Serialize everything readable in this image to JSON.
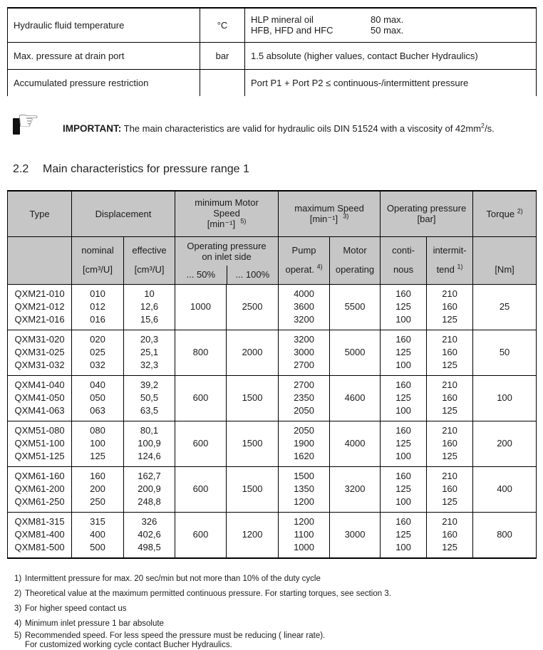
{
  "top_table": {
    "rows": [
      {
        "param": "Hydraulic fluid temperature",
        "unit": "°C",
        "entries": [
          {
            "label": "HLP mineral oil",
            "value": "80 max."
          },
          {
            "label": "HFB, HFD and HFC",
            "value": "50 max."
          }
        ]
      },
      {
        "param": "Max. pressure at drain port",
        "unit": "bar",
        "text": "1.5 absolute (higher values, contact Bucher Hydraulics)"
      },
      {
        "param": "Accumulated pressure restriction",
        "unit": "",
        "text": "Port P1 + Port P2 ≤   continuous-/intermittent pressure"
      }
    ]
  },
  "note": {
    "icon": "pointing-hand-icon",
    "label": "IMPORTANT:",
    "text": " The main characteristics are valid for hydraulic oils DIN 51524 with a viscosity of 42mm",
    "sup": "2",
    "tail": "/s."
  },
  "heading": {
    "number": "2.2",
    "title": "Main characteristics for pressure range 1"
  },
  "main_table": {
    "header": {
      "type": "Type",
      "displacement": "Displacement",
      "min_speed": {
        "l1": "minimum Motor",
        "l2": "Speed",
        "unit": "[min⁻¹]",
        "ref": "5)"
      },
      "max_speed": {
        "l1": "maximum Speed",
        "unit": "[min⁻¹]",
        "ref": "3)"
      },
      "op_pressure": {
        "l1": "Operating  pressure",
        "unit": "[bar]"
      },
      "torque": {
        "label": "Torque",
        "ref": "2)"
      },
      "sub": {
        "nominal": {
          "label": "nominal",
          "unit": "[cm³/U]"
        },
        "effective": {
          "label": "effective",
          "unit": "[cm³/U]"
        },
        "inlet": {
          "label": "Operating pressure on inlet side",
          "p50": "... 50%",
          "p100": "... 100%"
        },
        "pump": {
          "l1": "Pump",
          "l2": "operat.",
          "ref": "4)"
        },
        "motor": {
          "l1": "Motor",
          "l2": "operating"
        },
        "conti": {
          "l1": "conti-",
          "l2": "nous"
        },
        "intermit": {
          "l1": "intermit-",
          "l2": "tend",
          "ref": "1)"
        },
        "nm": "[Nm]"
      }
    },
    "groups": [
      {
        "types": [
          "QXM21-010",
          "QXM21-012",
          "QXM21-016"
        ],
        "nominal": [
          "010",
          "012",
          "016"
        ],
        "effective": [
          "10",
          "12,6",
          "15,6"
        ],
        "p50": "1000",
        "p100": "2500",
        "pump": [
          "4000",
          "3600",
          "3200"
        ],
        "motor": "5500",
        "conti": [
          "160",
          "125",
          "100"
        ],
        "intermit": [
          "210",
          "160",
          "125"
        ],
        "torque": "25"
      },
      {
        "types": [
          "QXM31-020",
          "QXM31-025",
          "QXM31-032"
        ],
        "nominal": [
          "020",
          "025",
          "032"
        ],
        "effective": [
          "20,3",
          "25,1",
          "32,3"
        ],
        "p50": "800",
        "p100": "2000",
        "pump": [
          "3200",
          "3000",
          "2700"
        ],
        "motor": "5000",
        "conti": [
          "160",
          "125",
          "100"
        ],
        "intermit": [
          "210",
          "160",
          "125"
        ],
        "torque": "50"
      },
      {
        "types": [
          "QXM41-040",
          "QXM41-050",
          "QXM41-063"
        ],
        "nominal": [
          "040",
          "050",
          "063"
        ],
        "effective": [
          "39,2",
          "50,5",
          "63,5"
        ],
        "p50": "600",
        "p100": "1500",
        "pump": [
          "2700",
          "2350",
          "2050"
        ],
        "motor": "4600",
        "conti": [
          "160",
          "125",
          "100"
        ],
        "intermit": [
          "210",
          "160",
          "125"
        ],
        "torque": "100"
      },
      {
        "types": [
          "QXM51-080",
          "QXM51-100",
          "QXM51-125"
        ],
        "nominal": [
          "080",
          "100",
          "125"
        ],
        "effective": [
          "80,1",
          "100,9",
          "124,6"
        ],
        "p50": "600",
        "p100": "1500",
        "pump": [
          "2050",
          "1900",
          "1620"
        ],
        "motor": "4000",
        "conti": [
          "160",
          "125",
          "100"
        ],
        "intermit": [
          "210",
          "160",
          "125"
        ],
        "torque": "200"
      },
      {
        "types": [
          "QXM61-160",
          "QXM61-200",
          "QXM61-250"
        ],
        "nominal": [
          "160",
          "200",
          "250"
        ],
        "effective": [
          "162,7",
          "200,9",
          "248,8"
        ],
        "p50": "600",
        "p100": "1500",
        "pump": [
          "1500",
          "1350",
          "1200"
        ],
        "motor": "3200",
        "conti": [
          "160",
          "125",
          "100"
        ],
        "intermit": [
          "210",
          "160",
          "125"
        ],
        "torque": "400"
      },
      {
        "types": [
          "QXM81-315",
          "QXM81-400",
          "QXM81-500"
        ],
        "nominal": [
          "315",
          "400",
          "500"
        ],
        "effective": [
          "326",
          "402,6",
          "498,5"
        ],
        "p50": "600",
        "p100": "1200",
        "pump": [
          "1200",
          "1100",
          "1000"
        ],
        "motor": "3000",
        "conti": [
          "160",
          "125",
          "100"
        ],
        "intermit": [
          "210",
          "160",
          "125"
        ],
        "torque": "800"
      }
    ]
  },
  "footnotes": [
    {
      "ref": "1)",
      "text": "Intermittent pressure for max. 20 sec/min but not more than 10% of the duty cycle",
      "style": ""
    },
    {
      "ref": "2)",
      "text": "Theoretical value at the maximum permitted continuous pressure. For starting torques, see section 3.",
      "style": ""
    },
    {
      "ref": "3)",
      "text": "For higher speed contact us",
      "style": ""
    },
    {
      "ref": "4)",
      "text": "Minimum inlet pressure 1 bar absolute",
      "style": "tight"
    },
    {
      "ref": "5)",
      "text": "Recommended speed. For less speed the pressure must be reducing ( linear rate).",
      "style": "cont"
    },
    {
      "ref": "",
      "text": "For customized working cycle contact Bucher Hydraulics.",
      "style": "cont"
    }
  ],
  "colors": {
    "header_bg": "#c6c6c6",
    "border": "#000000",
    "text": "#1b1b1d"
  }
}
